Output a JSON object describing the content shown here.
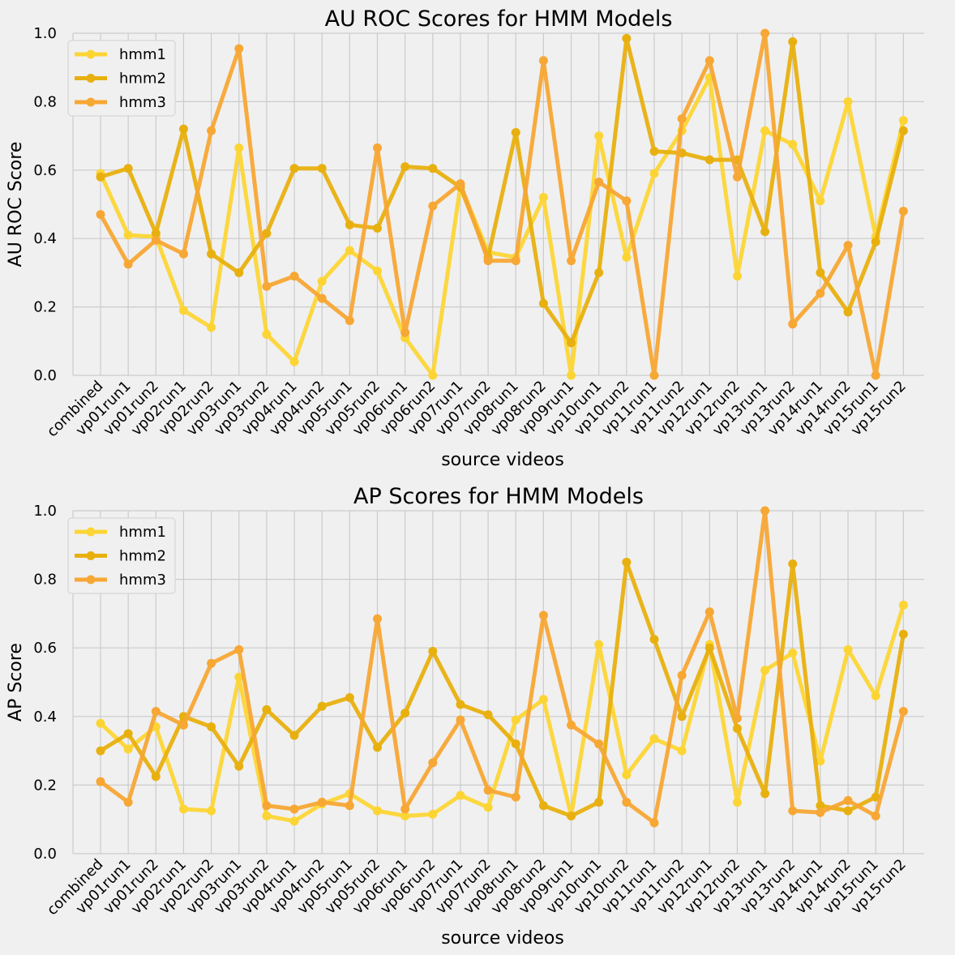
{
  "chart_data": [
    {
      "type": "line",
      "title": "AU ROC Scores for HMM Models",
      "xlabel": "source videos",
      "ylabel": "AU ROC Score",
      "ylim": [
        0,
        1
      ],
      "yticks": [
        "0.0",
        "0.2",
        "0.4",
        "0.6",
        "0.8",
        "1.0"
      ],
      "grid": true,
      "legend": "top-left",
      "categories": [
        "combined",
        "vp01run1",
        "vp01run2",
        "vp02run1",
        "vp02run2",
        "vp03run1",
        "vp03run2",
        "vp04run1",
        "vp04run2",
        "vp05run1",
        "vp05run2",
        "vp06run1",
        "vp06run2",
        "vp07run1",
        "vp07run2",
        "vp08run1",
        "vp08run2",
        "vp09run1",
        "vp10run1",
        "vp10run2",
        "vp11run1",
        "vp11run2",
        "vp12run1",
        "vp12run2",
        "vp13run1",
        "vp13run2",
        "vp14run1",
        "vp14run2",
        "vp15run1",
        "vp15run2"
      ],
      "series": [
        {
          "name": "hmm1",
          "color": "#fcd535",
          "values": [
            0.59,
            0.41,
            0.405,
            0.19,
            0.14,
            0.665,
            0.12,
            0.04,
            0.275,
            0.365,
            0.305,
            0.11,
            0.0,
            0.555,
            0.36,
            0.345,
            0.52,
            0.0,
            0.7,
            0.345,
            0.59,
            0.715,
            0.87,
            0.29,
            0.715,
            0.675,
            0.51,
            0.8,
            0.405,
            0.745
          ]
        },
        {
          "name": "hmm2",
          "color": "#e8b00f",
          "values": [
            0.58,
            0.605,
            0.415,
            0.72,
            0.355,
            0.3,
            0.415,
            0.605,
            0.605,
            0.44,
            0.43,
            0.61,
            0.605,
            0.55,
            0.345,
            0.71,
            0.21,
            0.095,
            0.3,
            0.985,
            0.655,
            0.65,
            0.63,
            0.63,
            0.42,
            0.975,
            0.3,
            0.185,
            0.39,
            0.715
          ]
        },
        {
          "name": "hmm3",
          "color": "#f7a734",
          "values": [
            0.47,
            0.325,
            0.395,
            0.355,
            0.715,
            0.955,
            0.26,
            0.29,
            0.225,
            0.16,
            0.665,
            0.125,
            0.495,
            0.56,
            0.335,
            0.335,
            0.92,
            0.335,
            0.565,
            0.51,
            0.0,
            0.75,
            0.92,
            0.58,
            1.0,
            0.15,
            0.24,
            0.38,
            0.0,
            0.48
          ]
        }
      ]
    },
    {
      "type": "line",
      "title": "AP Scores for HMM Models",
      "xlabel": "source videos",
      "ylabel": "AP Score",
      "ylim": [
        0,
        1
      ],
      "yticks": [
        "0.0",
        "0.2",
        "0.4",
        "0.6",
        "0.8",
        "1.0"
      ],
      "grid": true,
      "legend": "top-left",
      "categories": [
        "combined",
        "vp01run1",
        "vp01run2",
        "vp02run1",
        "vp02run2",
        "vp03run1",
        "vp03run2",
        "vp04run1",
        "vp04run2",
        "vp05run1",
        "vp05run2",
        "vp06run1",
        "vp06run2",
        "vp07run1",
        "vp07run2",
        "vp08run1",
        "vp08run2",
        "vp09run1",
        "vp10run1",
        "vp10run2",
        "vp11run1",
        "vp11run2",
        "vp12run1",
        "vp12run2",
        "vp13run1",
        "vp13run2",
        "vp14run1",
        "vp14run2",
        "vp15run1",
        "vp15run2"
      ],
      "series": [
        {
          "name": "hmm1",
          "color": "#fcd535",
          "values": [
            0.38,
            0.305,
            0.37,
            0.13,
            0.125,
            0.515,
            0.11,
            0.095,
            0.145,
            0.175,
            0.125,
            0.11,
            0.115,
            0.17,
            0.135,
            0.39,
            0.45,
            0.11,
            0.61,
            0.23,
            0.335,
            0.3,
            0.61,
            0.15,
            0.535,
            0.585,
            0.27,
            0.595,
            0.46,
            0.725
          ]
        },
        {
          "name": "hmm2",
          "color": "#e8b00f",
          "values": [
            0.3,
            0.35,
            0.225,
            0.4,
            0.37,
            0.255,
            0.42,
            0.345,
            0.43,
            0.455,
            0.31,
            0.41,
            0.59,
            0.435,
            0.405,
            0.32,
            0.14,
            0.11,
            0.15,
            0.85,
            0.625,
            0.4,
            0.6,
            0.365,
            0.175,
            0.845,
            0.14,
            0.125,
            0.165,
            0.64
          ]
        },
        {
          "name": "hmm3",
          "color": "#f7a734",
          "values": [
            0.21,
            0.15,
            0.415,
            0.375,
            0.555,
            0.595,
            0.14,
            0.13,
            0.15,
            0.14,
            0.685,
            0.13,
            0.265,
            0.39,
            0.185,
            0.165,
            0.695,
            0.375,
            0.32,
            0.15,
            0.09,
            0.52,
            0.705,
            0.395,
            1.0,
            0.125,
            0.12,
            0.155,
            0.11,
            0.415
          ]
        }
      ]
    }
  ]
}
